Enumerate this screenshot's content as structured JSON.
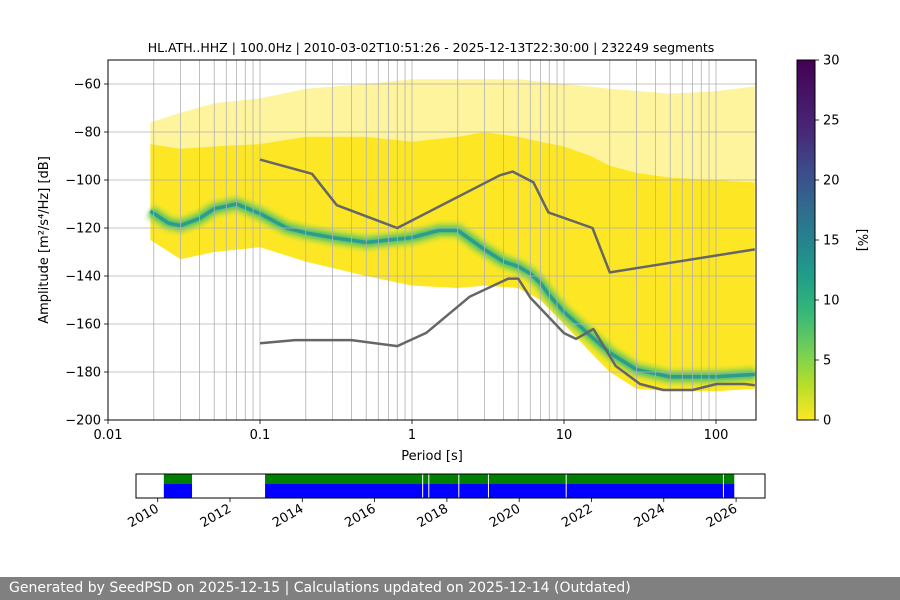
{
  "colors": {
    "nlnm_nhnm": "#666666",
    "pdf_low": "#fde725",
    "pdf_mid": "#2a9d8f",
    "grid": "#b0b0b0",
    "data_present": "#0000ff",
    "data_processed": "#008000",
    "footer_bg": "#808080"
  },
  "footer": {
    "text": "Generated by SeedPSD on 2025-12-15 | Calculations updated on 2025-12-14 (Outdated)"
  },
  "chart_data": [
    {
      "type": "heatmap",
      "title": "HL.ATH..HHZ | 100.0Hz | 2010-03-02T10:51:26 - 2025-12-13T22:30:00 | 232249 segments",
      "xlabel": "Period [s]",
      "ylabel": "Amplitude [m²/s⁴/Hz] [dB]",
      "xscale": "log",
      "xlim": [
        0.01,
        180
      ],
      "ylim": [
        -200,
        -50
      ],
      "x_ticks": [
        0.01,
        0.1,
        1,
        10,
        100
      ],
      "x_tick_labels": [
        "0.01",
        "0.1",
        "1",
        "10",
        "100"
      ],
      "y_ticks": [
        -200,
        -180,
        -160,
        -140,
        -120,
        -100,
        -80,
        -60
      ],
      "y_tick_labels": [
        "−200",
        "−180",
        "−160",
        "−140",
        "−120",
        "−100",
        "−80",
        "−60"
      ],
      "grid": true,
      "vertical_grid_periods": [
        0.02,
        0.03,
        0.04,
        0.05,
        0.06,
        0.07,
        0.08,
        0.09,
        0.1,
        0.2,
        0.3,
        0.4,
        0.5,
        0.6,
        0.7,
        0.8,
        0.9,
        1,
        2,
        3,
        4,
        5,
        6,
        7,
        8,
        9,
        10,
        20,
        30,
        40,
        50,
        60,
        70,
        80,
        90,
        100
      ],
      "colorbar": {
        "label": "[%]",
        "range": [
          0,
          30
        ],
        "ticks": [
          0,
          5,
          10,
          15,
          20,
          25,
          30
        ],
        "tick_labels": [
          "0",
          "5",
          "10",
          "15",
          "20",
          "25",
          "30"
        ],
        "colormap": "viridis_r"
      },
      "pdf_mode_line": {
        "period": [
          0.019,
          0.025,
          0.03,
          0.04,
          0.05,
          0.07,
          0.1,
          0.15,
          0.2,
          0.3,
          0.5,
          0.7,
          1,
          1.5,
          2,
          3,
          4,
          5,
          6,
          7,
          8,
          10,
          15,
          20,
          30,
          50,
          100,
          180
        ],
        "amplitude": [
          -113,
          -118,
          -119,
          -116,
          -112,
          -110,
          -114,
          -120,
          -122,
          -124,
          -126,
          -125,
          -124,
          -121,
          -121,
          -129,
          -134,
          -136,
          -139,
          -143,
          -148,
          -155,
          -165,
          -172,
          -179,
          -182,
          -182,
          -181
        ]
      },
      "pdf_envelope": {
        "period": [
          0.019,
          0.03,
          0.05,
          0.1,
          0.2,
          0.5,
          1,
          2,
          3,
          5,
          7,
          10,
          15,
          20,
          30,
          50,
          100,
          180
        ],
        "upper": [
          -85,
          -87,
          -86,
          -85,
          -82,
          -82,
          -84,
          -82,
          -80,
          -82,
          -84,
          -86,
          -90,
          -94,
          -97,
          -99,
          -100,
          -101
        ],
        "lower": [
          -125,
          -133,
          -130,
          -128,
          -134,
          -140,
          -144,
          -145,
          -144,
          -145,
          -150,
          -160,
          -172,
          -180,
          -187,
          -188,
          -188,
          -187
        ]
      },
      "pdf_outliers_top": {
        "period": [
          0.019,
          0.03,
          0.05,
          0.1,
          0.2,
          0.5,
          1,
          2,
          5,
          10,
          20,
          50,
          100,
          180
        ],
        "amplitude": [
          -76,
          -72,
          -68,
          -66,
          -62,
          -60,
          -58,
          -58,
          -58,
          -60,
          -62,
          -64,
          -63,
          -61
        ]
      },
      "series": [
        {
          "name": "NHNM",
          "period": [
            0.1,
            0.22,
            0.32,
            0.8,
            3.8,
            4.6,
            6.3,
            7.9,
            15.4,
            20,
            180
          ],
          "amplitude": [
            -91.5,
            -97.4,
            -110.5,
            -120,
            -98,
            -96.5,
            -101,
            -113.5,
            -120,
            -138.5,
            -128.9
          ]
        },
        {
          "name": "NLNM",
          "period": [
            0.1,
            0.17,
            0.4,
            0.8,
            1.24,
            2.4,
            4.3,
            5,
            6,
            10,
            12,
            15.6,
            21.9,
            31.6,
            45,
            70,
            101,
            154,
            180
          ],
          "amplitude": [
            -168,
            -166.7,
            -166.7,
            -169.2,
            -163.7,
            -148.6,
            -141.1,
            -141.1,
            -149,
            -163.8,
            -166.2,
            -162.1,
            -177.5,
            -185,
            -187.5,
            -187.5,
            -185,
            -185,
            -185.5
          ]
        }
      ]
    },
    {
      "type": "timeline",
      "x_ticks": [
        2010,
        2012,
        2014,
        2016,
        2018,
        2020,
        2022,
        2024,
        2026
      ],
      "x_tick_labels": [
        "2010",
        "2012",
        "2014",
        "2016",
        "2018",
        "2020",
        "2022",
        "2024",
        "2026"
      ],
      "xlim": [
        2009.4,
        2026.8
      ],
      "data_segments": [
        [
          2010.17,
          2010.95
        ],
        [
          2012.97,
          2025.95
        ]
      ],
      "processed_segments": [
        [
          2010.17,
          2010.95
        ],
        [
          2012.97,
          2025.95
        ]
      ],
      "gaps": [
        2017.33,
        2017.5,
        2018.33,
        2019.15,
        2021.3,
        2025.65
      ]
    }
  ]
}
